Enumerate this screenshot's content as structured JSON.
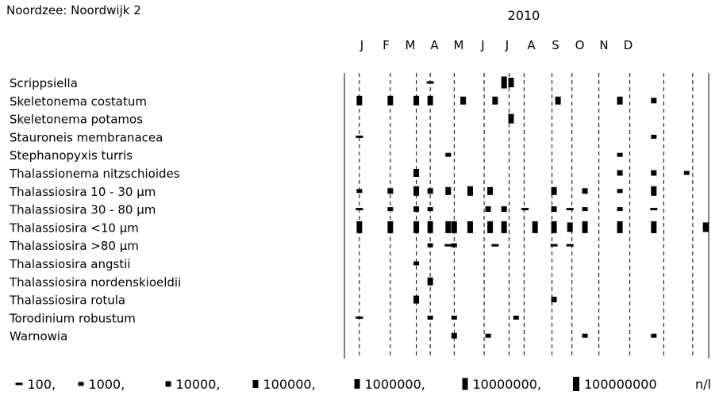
{
  "chart_data": {
    "type": "heatmap",
    "title": "Noordzee: Noordwijk 2",
    "year": "2010",
    "months": [
      "J",
      "F",
      "M",
      "A",
      "M",
      "J",
      "J",
      "A",
      "S",
      "O",
      "N",
      "D"
    ],
    "species": [
      "Scrippsiella",
      "Skeletonema costatum",
      "Skeletonema potamos",
      "Stauroneis membranacea",
      "Stephanopyxis turris",
      "Thalassionema nitzschioides",
      "Thalassiosira 10 - 30 µm",
      "Thalassiosira 30 - 80 µm",
      "Thalassiosira <10 µm",
      "Thalassiosira >80 µm",
      "Thalassiosira angstii",
      "Thalassiosira nordenskioeldii",
      "Thalassiosira rotula",
      "Torodinium robustum",
      "Warnowia"
    ],
    "sample_days": [
      15,
      46,
      72,
      86,
      110,
      140,
      165,
      180,
      208,
      228,
      255,
      286,
      320,
      349
    ],
    "observations": [
      {
        "species": 0,
        "day": 86,
        "level": 100
      },
      {
        "species": 0,
        "day": 160,
        "level": 10000000
      },
      {
        "species": 0,
        "day": 167,
        "level": 1000000
      },
      {
        "species": 1,
        "day": 15,
        "level": 1000000
      },
      {
        "species": 1,
        "day": 46,
        "level": 1000000
      },
      {
        "species": 1,
        "day": 72,
        "level": 1000000
      },
      {
        "species": 1,
        "day": 86,
        "level": 1000000
      },
      {
        "species": 1,
        "day": 119,
        "level": 100000
      },
      {
        "species": 1,
        "day": 151,
        "level": 100000
      },
      {
        "species": 1,
        "day": 214,
        "level": 100000
      },
      {
        "species": 1,
        "day": 276,
        "level": 100000
      },
      {
        "species": 1,
        "day": 310,
        "level": 10000
      },
      {
        "species": 2,
        "day": 167,
        "level": 1000000
      },
      {
        "species": 3,
        "day": 15,
        "level": 100
      },
      {
        "species": 3,
        "day": 310,
        "level": 1000
      },
      {
        "species": 4,
        "day": 104,
        "level": 1000
      },
      {
        "species": 4,
        "day": 276,
        "level": 1000
      },
      {
        "species": 5,
        "day": 72,
        "level": 100000
      },
      {
        "species": 5,
        "day": 276,
        "level": 10000
      },
      {
        "species": 5,
        "day": 310,
        "level": 10000
      },
      {
        "species": 5,
        "day": 343,
        "level": 1000
      },
      {
        "species": 6,
        "day": 15,
        "level": 1000
      },
      {
        "species": 6,
        "day": 46,
        "level": 10000
      },
      {
        "species": 6,
        "day": 72,
        "level": 1000000
      },
      {
        "species": 6,
        "day": 86,
        "level": 10000
      },
      {
        "species": 6,
        "day": 104,
        "level": 100000
      },
      {
        "species": 6,
        "day": 126,
        "level": 1000000
      },
      {
        "species": 6,
        "day": 146,
        "level": 100000
      },
      {
        "species": 6,
        "day": 210,
        "level": 100000
      },
      {
        "species": 6,
        "day": 241,
        "level": 10000
      },
      {
        "species": 6,
        "day": 276,
        "level": 1000
      },
      {
        "species": 6,
        "day": 310,
        "level": 1000000
      },
      {
        "species": 7,
        "day": 15,
        "level": 100
      },
      {
        "species": 7,
        "day": 46,
        "level": 1000
      },
      {
        "species": 7,
        "day": 72,
        "level": 10000
      },
      {
        "species": 7,
        "day": 86,
        "level": 1000
      },
      {
        "species": 7,
        "day": 144,
        "level": 10000
      },
      {
        "species": 7,
        "day": 160,
        "level": 10000
      },
      {
        "species": 7,
        "day": 181,
        "level": 100
      },
      {
        "species": 7,
        "day": 210,
        "level": 10000
      },
      {
        "species": 7,
        "day": 226,
        "level": 100
      },
      {
        "species": 7,
        "day": 241,
        "level": 1000
      },
      {
        "species": 7,
        "day": 276,
        "level": 1000
      },
      {
        "species": 7,
        "day": 310,
        "level": 100
      },
      {
        "species": 8,
        "day": 15,
        "level": 10000000
      },
      {
        "species": 8,
        "day": 46,
        "level": 10000000
      },
      {
        "species": 8,
        "day": 72,
        "level": 10000000
      },
      {
        "species": 8,
        "day": 86,
        "level": 10000000
      },
      {
        "species": 8,
        "day": 104,
        "level": 10000000
      },
      {
        "species": 8,
        "day": 110,
        "level": 10000000
      },
      {
        "species": 8,
        "day": 126,
        "level": 10000000
      },
      {
        "species": 8,
        "day": 146,
        "level": 10000000
      },
      {
        "species": 8,
        "day": 160,
        "level": 10000000
      },
      {
        "species": 8,
        "day": 191,
        "level": 10000000
      },
      {
        "species": 8,
        "day": 210,
        "level": 10000000
      },
      {
        "species": 8,
        "day": 226,
        "level": 1000000
      },
      {
        "species": 8,
        "day": 241,
        "level": 10000000
      },
      {
        "species": 8,
        "day": 276,
        "level": 10000000
      },
      {
        "species": 8,
        "day": 310,
        "level": 10000000
      },
      {
        "species": 8,
        "day": 362,
        "level": 1000000
      },
      {
        "species": 9,
        "day": 86,
        "level": 1000
      },
      {
        "species": 9,
        "day": 104,
        "level": 100
      },
      {
        "species": 9,
        "day": 110,
        "level": 1000
      },
      {
        "species": 9,
        "day": 151,
        "level": 100
      },
      {
        "species": 9,
        "day": 210,
        "level": 100
      },
      {
        "species": 9,
        "day": 226,
        "level": 100
      },
      {
        "species": 10,
        "day": 72,
        "level": 1000
      },
      {
        "species": 11,
        "day": 86,
        "level": 100000
      },
      {
        "species": 12,
        "day": 72,
        "level": 100000
      },
      {
        "species": 12,
        "day": 210,
        "level": 10000
      },
      {
        "species": 13,
        "day": 15,
        "level": 100
      },
      {
        "species": 13,
        "day": 86,
        "level": 1000
      },
      {
        "species": 13,
        "day": 110,
        "level": 1000
      },
      {
        "species": 13,
        "day": 172,
        "level": 1000
      },
      {
        "species": 14,
        "day": 110,
        "level": 10000
      },
      {
        "species": 14,
        "day": 144,
        "level": 1000
      },
      {
        "species": 14,
        "day": 241,
        "level": 1000
      },
      {
        "species": 14,
        "day": 310,
        "level": 1000
      }
    ],
    "legend": {
      "levels": [
        100,
        1000,
        10000,
        100000,
        1000000,
        10000000,
        100000000
      ],
      "labels": [
        "100,",
        "1000,",
        "10000,",
        "100000,",
        "1000000,",
        "10000000,",
        "100000000"
      ],
      "unit": "n/l"
    }
  }
}
